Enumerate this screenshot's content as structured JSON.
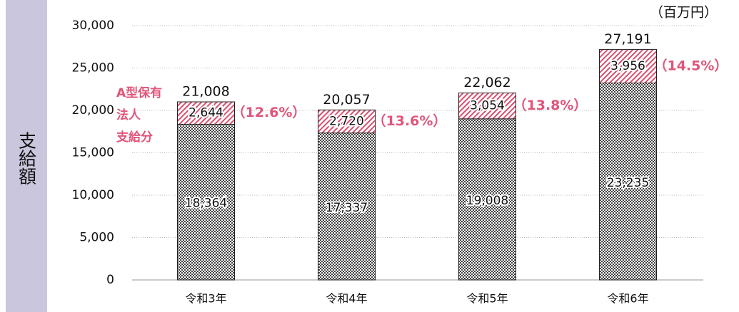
{
  "chart_data": {
    "type": "stacked_bar",
    "y_label": "支給額",
    "unit": "（百万円）",
    "categories": [
      "令和3年",
      "令和4年",
      "令和5年",
      "令和6年"
    ],
    "series": [
      {
        "color": "#444444",
        "values": [
          18364,
          17337,
          19008,
          23235
        ],
        "value_labels": [
          "18,364",
          "17,337",
          "19,008",
          "23,235"
        ]
      },
      {
        "name": [
          "A型保有",
          "法人",
          "支給分"
        ],
        "color": "#d9506f",
        "values": [
          2644,
          2720,
          3054,
          3956
        ],
        "value_labels": [
          "2,644",
          "2,720",
          "3,054",
          "3,956"
        ],
        "percent_labels": [
          "（12.6%）",
          "（13.6%）",
          "（13.8%）",
          "（14.5%）"
        ]
      }
    ],
    "totals": {
      "values": [
        21008,
        20057,
        22062,
        27191
      ],
      "value_labels": [
        "21,008",
        "20,057",
        "22,062",
        "27,191"
      ]
    },
    "ylim": [
      0,
      30000
    ],
    "yticks": [
      0,
      {
        "value": 5000,
        "label": "5,000"
      },
      {
        "value": 10000,
        "label": "10,000"
      },
      {
        "value": 15000,
        "label": "15,000"
      },
      {
        "value": 20000,
        "label": "20,000"
      },
      {
        "value": 25000,
        "label": "25,000"
      },
      {
        "value": 30000,
        "label": "30,000"
      }
    ],
    "grid": true
  }
}
